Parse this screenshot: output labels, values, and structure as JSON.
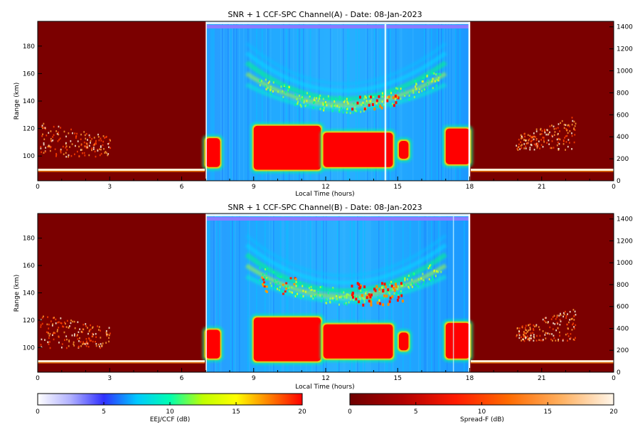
{
  "chart_data": [
    {
      "type": "heatmap",
      "id": "A",
      "title": "SNR + 1 CCF-SPC Channel(A) - Date: 08-Jan-2023",
      "xlabel": "Local Time (hours)",
      "ylabel": "Range (km)",
      "x_ticks": [
        "0",
        "3",
        "6",
        "9",
        "12",
        "15",
        "18",
        "21",
        "0"
      ],
      "y_ticks": [
        "100",
        "120",
        "140",
        "160",
        "180"
      ],
      "y2_ticks": [
        "0",
        "200",
        "400",
        "600",
        "800",
        "1000",
        "1200",
        "1400"
      ],
      "xlim": [
        0,
        24
      ],
      "ylim": [
        82,
        198
      ],
      "y2lim": [
        0,
        1450
      ],
      "segments": [
        {
          "name": "night-1",
          "x": [
            0,
            7
          ],
          "colormap": "Spread-F"
        },
        {
          "name": "day",
          "x": [
            7,
            18
          ],
          "colormap": "EEJ/CCF"
        },
        {
          "name": "night-2",
          "x": [
            18,
            24
          ],
          "colormap": "Spread-F"
        }
      ],
      "features": [
        {
          "kind": "eej-band",
          "x": [
            7.0,
            18.0
          ],
          "y": [
            92,
            122
          ],
          "level": 20
        },
        {
          "kind": "ccf-arc",
          "x": [
            9.0,
            17.0
          ],
          "y": [
            132,
            165
          ],
          "level": 10
        },
        {
          "kind": "ccf-blobs",
          "x": [
            13.0,
            15.0
          ],
          "y": [
            135,
            145
          ],
          "level": 20
        },
        {
          "kind": "spread-f",
          "x": [
            0.1,
            3.0
          ],
          "y": [
            100,
            125
          ],
          "level": 20
        },
        {
          "kind": "spread-f",
          "x": [
            19.9,
            22.4
          ],
          "y": [
            105,
            130
          ],
          "level": 20
        },
        {
          "kind": "baseline",
          "y": 90,
          "level": 20
        }
      ]
    },
    {
      "type": "heatmap",
      "id": "B",
      "title": "SNR + 1 CCF-SPC Channel(B) - Date: 08-Jan-2023",
      "xlabel": "Local Time (hours)",
      "ylabel": "Range (km)",
      "x_ticks": [
        "0",
        "3",
        "6",
        "9",
        "12",
        "15",
        "18",
        "21",
        "0"
      ],
      "y_ticks": [
        "100",
        "120",
        "140",
        "160",
        "180"
      ],
      "y2_ticks": [
        "0",
        "200",
        "400",
        "600",
        "800",
        "1000",
        "1200",
        "1400"
      ],
      "xlim": [
        0,
        24
      ],
      "ylim": [
        82,
        198
      ],
      "y2lim": [
        0,
        1450
      ],
      "segments": [
        {
          "name": "night-1",
          "x": [
            0,
            7
          ],
          "colormap": "Spread-F"
        },
        {
          "name": "day",
          "x": [
            7,
            18
          ],
          "colormap": "EEJ/CCF"
        },
        {
          "name": "night-2",
          "x": [
            18,
            24
          ],
          "colormap": "Spread-F"
        }
      ],
      "features": [
        {
          "kind": "eej-band",
          "x": [
            7.0,
            18.0
          ],
          "y": [
            92,
            122
          ],
          "level": 20
        },
        {
          "kind": "ccf-arc",
          "x": [
            9.0,
            17.0
          ],
          "y": [
            132,
            165
          ],
          "level": 10
        },
        {
          "kind": "ccf-blobs",
          "x": [
            13.0,
            15.2
          ],
          "y": [
            132,
            148
          ],
          "level": 20
        },
        {
          "kind": "spread-f",
          "x": [
            0.1,
            3.0
          ],
          "y": [
            100,
            125
          ],
          "level": 20
        },
        {
          "kind": "spread-f",
          "x": [
            19.9,
            22.4
          ],
          "y": [
            105,
            130
          ],
          "level": 20
        },
        {
          "kind": "baseline",
          "y": 90,
          "level": 20
        }
      ]
    }
  ],
  "colorbars": [
    {
      "label": "EEJ/CCF (dB)",
      "ticks": [
        "0",
        "5",
        "10",
        "15",
        "20"
      ],
      "range": [
        0,
        20
      ],
      "colors": [
        "#ffffff",
        "#b0b0ff",
        "#3030ff",
        "#00c8ff",
        "#00ffb0",
        "#c0ff00",
        "#ffff00",
        "#ff8000",
        "#ff0000"
      ]
    },
    {
      "label": "Spread-F (dB)",
      "ticks": [
        "0",
        "5",
        "10",
        "15",
        "20"
      ],
      "range": [
        0,
        20
      ],
      "colors": [
        "#6e0000",
        "#b00000",
        "#ff1a00",
        "#ff6a00",
        "#ffb060",
        "#fff6ea"
      ]
    }
  ]
}
